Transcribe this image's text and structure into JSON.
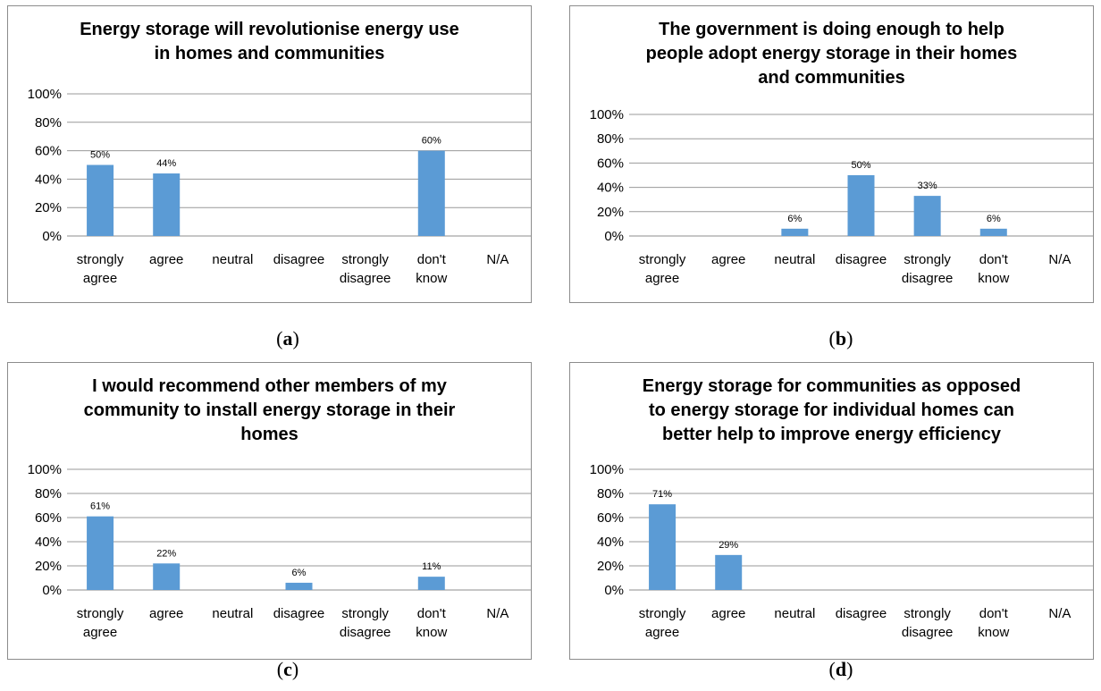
{
  "chart_data": [
    {
      "type": "bar",
      "title": [
        "Energy storage will revolutionise energy use",
        "in homes and communities"
      ],
      "categories": [
        [
          "strongly",
          "agree"
        ],
        [
          "agree"
        ],
        [
          "neutral"
        ],
        [
          "disagree"
        ],
        [
          "strongly",
          "disagree"
        ],
        [
          "don't",
          "know"
        ],
        [
          "N/A"
        ]
      ],
      "values": [
        50,
        44,
        0,
        0,
        0,
        60,
        0
      ],
      "data_labels": [
        "50%",
        "44%",
        "",
        "",
        "",
        "60%",
        ""
      ],
      "ylim": [
        0,
        100
      ],
      "yticks": [
        "0%",
        "20%",
        "40%",
        "60%",
        "80%",
        "100%"
      ],
      "grid": true,
      "legend": "none",
      "bar_color": "#5b9bd5",
      "caption_letter": "a"
    },
    {
      "type": "bar",
      "title": [
        "The government is doing enough to help",
        "people adopt energy storage in their homes",
        "and communities"
      ],
      "categories": [
        [
          "strongly",
          "agree"
        ],
        [
          "agree"
        ],
        [
          "neutral"
        ],
        [
          "disagree"
        ],
        [
          "strongly",
          "disagree"
        ],
        [
          "don't",
          "know"
        ],
        [
          "N/A"
        ]
      ],
      "values": [
        0,
        0,
        6,
        50,
        33,
        6,
        0
      ],
      "data_labels": [
        "",
        "",
        "6%",
        "50%",
        "33%",
        "6%",
        ""
      ],
      "ylim": [
        0,
        100
      ],
      "yticks": [
        "0%",
        "20%",
        "40%",
        "60%",
        "80%",
        "100%"
      ],
      "grid": true,
      "legend": "none",
      "bar_color": "#5b9bd5",
      "caption_letter": "b"
    },
    {
      "type": "bar",
      "title": [
        "I would recommend other members of my",
        "community to install energy storage in their",
        "homes"
      ],
      "categories": [
        [
          "strongly",
          "agree"
        ],
        [
          "agree"
        ],
        [
          "neutral"
        ],
        [
          "disagree"
        ],
        [
          "strongly",
          "disagree"
        ],
        [
          "don't",
          "know"
        ],
        [
          "N/A"
        ]
      ],
      "values": [
        61,
        22,
        0,
        6,
        0,
        11,
        0
      ],
      "data_labels": [
        "61%",
        "22%",
        "",
        "6%",
        "",
        "11%",
        ""
      ],
      "ylim": [
        0,
        100
      ],
      "yticks": [
        "0%",
        "20%",
        "40%",
        "60%",
        "80%",
        "100%"
      ],
      "grid": true,
      "legend": "none",
      "bar_color": "#5b9bd5",
      "caption_letter": "c"
    },
    {
      "type": "bar",
      "title": [
        "Energy storage for communities as opposed",
        "to energy storage for individual homes can",
        "better help to improve energy efficiency"
      ],
      "categories": [
        [
          "strongly",
          "agree"
        ],
        [
          "agree"
        ],
        [
          "neutral"
        ],
        [
          "disagree"
        ],
        [
          "strongly",
          "disagree"
        ],
        [
          "don't",
          "know"
        ],
        [
          "N/A"
        ]
      ],
      "values": [
        71,
        29,
        0,
        0,
        0,
        0,
        0
      ],
      "data_labels": [
        "71%",
        "29%",
        "",
        "",
        "",
        "",
        ""
      ],
      "ylim": [
        0,
        100
      ],
      "yticks": [
        "0%",
        "20%",
        "40%",
        "60%",
        "80%",
        "100%"
      ],
      "grid": true,
      "legend": "none",
      "bar_color": "#5b9bd5",
      "caption_letter": "d"
    }
  ]
}
